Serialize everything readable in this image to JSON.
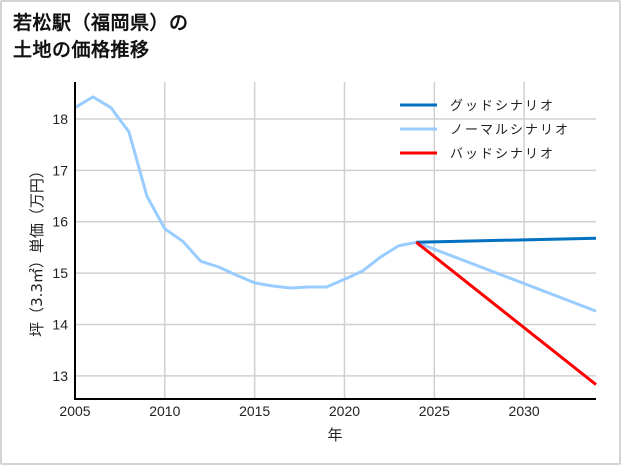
{
  "title": {
    "line1": "若松駅（福岡県）の",
    "line2": "土地の価格推移"
  },
  "chart_data": {
    "type": "line",
    "title": "若松駅（福岡県）の土地の価格推移",
    "xlabel": "年",
    "ylabel": "坪（3.3㎡）単価（万円）",
    "xlim": [
      2005,
      2034
    ],
    "ylim": [
      12.55,
      18.72
    ],
    "x_ticks": [
      "2005",
      "2010",
      "2015",
      "2020",
      "2025",
      "2030"
    ],
    "y_ticks": [
      "13",
      "14",
      "15",
      "16",
      "17",
      "18"
    ],
    "grid": true,
    "legend_position": "upper right",
    "series": [
      {
        "name": "グッドシナリオ",
        "color": "#0070c0",
        "x": [
          2024,
          2034
        ],
        "values": [
          15.6,
          15.68
        ]
      },
      {
        "name": "ノーマルシナリオ",
        "color": "#99ccff",
        "x": [
          2005,
          2006,
          2007,
          2008,
          2009,
          2010,
          2011,
          2012,
          2013,
          2014,
          2015,
          2016,
          2017,
          2018,
          2019,
          2020,
          2021,
          2022,
          2023,
          2024,
          2034
        ],
        "values": [
          18.22,
          18.43,
          18.22,
          17.75,
          16.5,
          15.86,
          15.62,
          15.23,
          15.12,
          14.96,
          14.81,
          14.75,
          14.71,
          14.73,
          14.73,
          14.88,
          15.04,
          15.31,
          15.53,
          15.6,
          14.26
        ]
      },
      {
        "name": "バッドシナリオ",
        "color": "#ff0000",
        "x": [
          2024,
          2034
        ],
        "values": [
          15.6,
          12.83
        ]
      }
    ]
  }
}
